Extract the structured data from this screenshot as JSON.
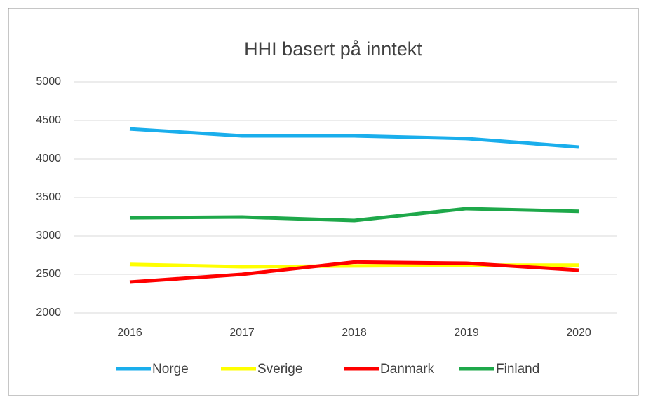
{
  "chart_data": {
    "type": "line",
    "title": "HHI basert på inntekt",
    "categories": [
      "2016",
      "2017",
      "2018",
      "2019",
      "2020"
    ],
    "series": [
      {
        "name": "Norge",
        "color": "#1aaeec",
        "values": [
          4390,
          4300,
          4300,
          4265,
          4155
        ]
      },
      {
        "name": "Sverige",
        "color": "#ffff00",
        "values": [
          2630,
          2600,
          2610,
          2620,
          2620
        ]
      },
      {
        "name": "Danmark",
        "color": "#ff0000",
        "values": [
          2400,
          2500,
          2660,
          2645,
          2555
        ]
      },
      {
        "name": "Finland",
        "color": "#1ea84a",
        "values": [
          3235,
          3245,
          3200,
          3355,
          3320
        ]
      }
    ],
    "ylim": [
      2000,
      5000
    ],
    "yticks": [
      2000,
      2500,
      3000,
      3500,
      4000,
      4500,
      5000
    ],
    "grid": true,
    "legend": "bottom"
  }
}
